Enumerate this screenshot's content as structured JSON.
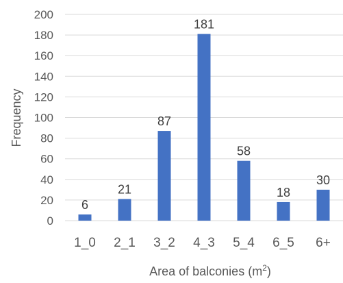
{
  "chart_data": {
    "type": "bar",
    "title": "",
    "xlabel": "Area of balconies (m",
    "xlabel_superscript": "2",
    "xlabel_suffix": ")",
    "ylabel": "Frequency",
    "categories": [
      "1_0",
      "2_1",
      "3_2",
      "4_3",
      "5_4",
      "6_5",
      "6+"
    ],
    "values": [
      6,
      21,
      87,
      181,
      58,
      18,
      30
    ],
    "ylim": [
      0,
      200
    ],
    "yticks": [
      0,
      20,
      40,
      60,
      80,
      100,
      120,
      140,
      160,
      180,
      200
    ],
    "grid": true,
    "legend": "none",
    "bar_color": "#4472c4",
    "grid_color": "#d9d9d9",
    "text_color": "#595959"
  }
}
